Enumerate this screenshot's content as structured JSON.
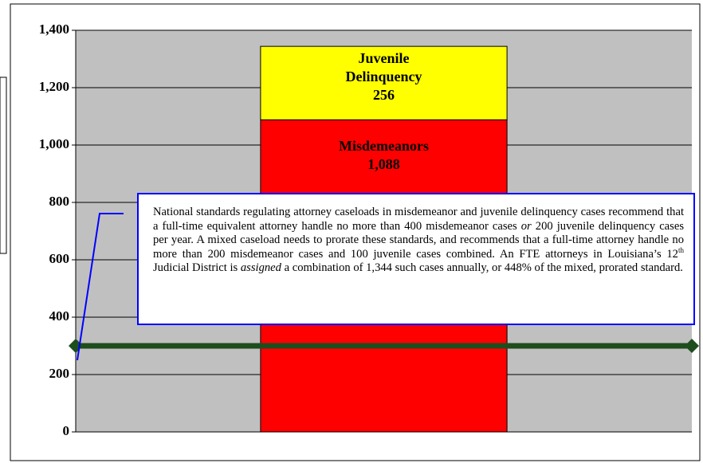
{
  "chart_data": {
    "type": "stacked_bar",
    "categories": [
      null
    ],
    "series": [
      {
        "name": "Misdemeanors",
        "color": "#ff0000",
        "values": [
          1088
        ],
        "value_labels": [
          "1,088"
        ]
      },
      {
        "name": "Juvenile Delinquency",
        "color": "#ffff00",
        "values": [
          256
        ]
      }
    ],
    "ylim": [
      0,
      1400
    ],
    "yticks": [
      0,
      200,
      400,
      600,
      800,
      {
        "value": 1000,
        "label": "1,000"
      },
      {
        "value": 1200,
        "label": "1,200"
      },
      {
        "value": 1400,
        "label": "1,400"
      }
    ],
    "grid": true,
    "reference_line": {
      "value": 300,
      "color": "#1e4d1e"
    },
    "annotation": [
      "National standards regulating attorney caseloads in misdemeanor and juvenile delinquency cases recommend that a full-time equivalent attorney handle no more than 400 misdemeanor cases ",
      "or",
      " 200 juvenile delinquency cases per year.  A mixed caseload needs to prorate these standards, and recommends that a full-time attorney handle no more than 200 misdemeanor cases and 100 juvenile cases combined. An FTE attorneys in Louisiana’s 12",
      "th",
      " Judicial District is ",
      "assigned",
      " a combination of 1,344 such cases annually, or 448% of the mixed, prorated standard."
    ]
  }
}
